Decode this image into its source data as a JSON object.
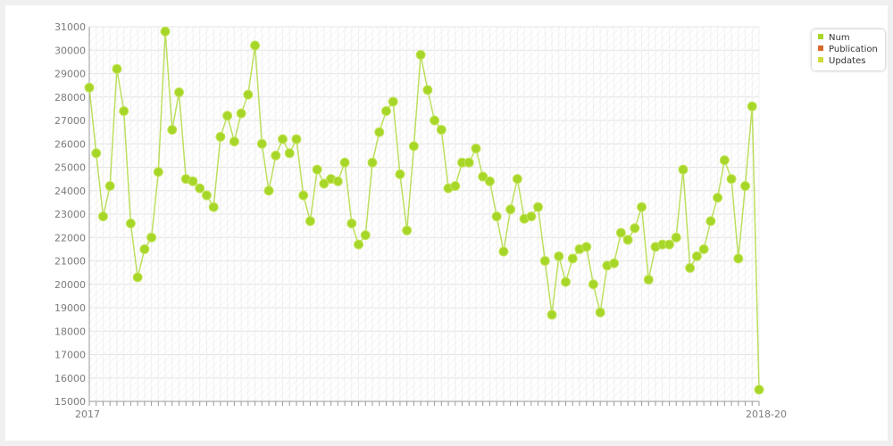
{
  "chart_data": {
    "type": "line",
    "title": "",
    "xlabel": "",
    "ylabel": "",
    "ylim": [
      15000,
      31000
    ],
    "y_ticks": [
      15000,
      16000,
      17000,
      18000,
      19000,
      20000,
      21000,
      22000,
      23000,
      24000,
      25000,
      26000,
      27000,
      28000,
      29000,
      30000,
      31000
    ],
    "x_tick_first": "2017",
    "x_tick_last": "2018-20",
    "grid": true,
    "legend_position": "top-right",
    "legend": [
      {
        "name": "Num",
        "color": "#a6d628"
      },
      {
        "name": "Publication",
        "color": "#d9692e"
      },
      {
        "name": "Updates",
        "color": "#cfdc3a"
      }
    ],
    "series": [
      {
        "name": "Num",
        "color": "#a6d628",
        "values": [
          28400,
          25600,
          22900,
          24200,
          29200,
          27400,
          22600,
          20300,
          21500,
          22000,
          24800,
          30800,
          26600,
          28200,
          24500,
          24400,
          24100,
          23800,
          23300,
          26300,
          27200,
          26100,
          27300,
          28100,
          30200,
          26000,
          24000,
          25500,
          26200,
          25600,
          26200,
          23800,
          22700,
          24900,
          24300,
          24500,
          24400,
          25200,
          22600,
          21700,
          22100,
          25200,
          26500,
          27400,
          27800,
          24700,
          22300,
          25900,
          29800,
          28300,
          27000,
          26600,
          24100,
          24200,
          25200,
          25200,
          25800,
          24600,
          24400,
          22900,
          21400,
          23200,
          24500,
          22800,
          22900,
          23300,
          21000,
          18700,
          21200,
          20100,
          21100,
          21500,
          21600,
          20000,
          18800,
          20800,
          20900,
          22200,
          21900,
          22400,
          23300,
          20200,
          21600,
          21700,
          21700,
          22000,
          24900,
          20700,
          21200,
          21500,
          22700,
          23700,
          25300,
          24500,
          21100,
          24200,
          27600,
          15500
        ]
      }
    ]
  }
}
